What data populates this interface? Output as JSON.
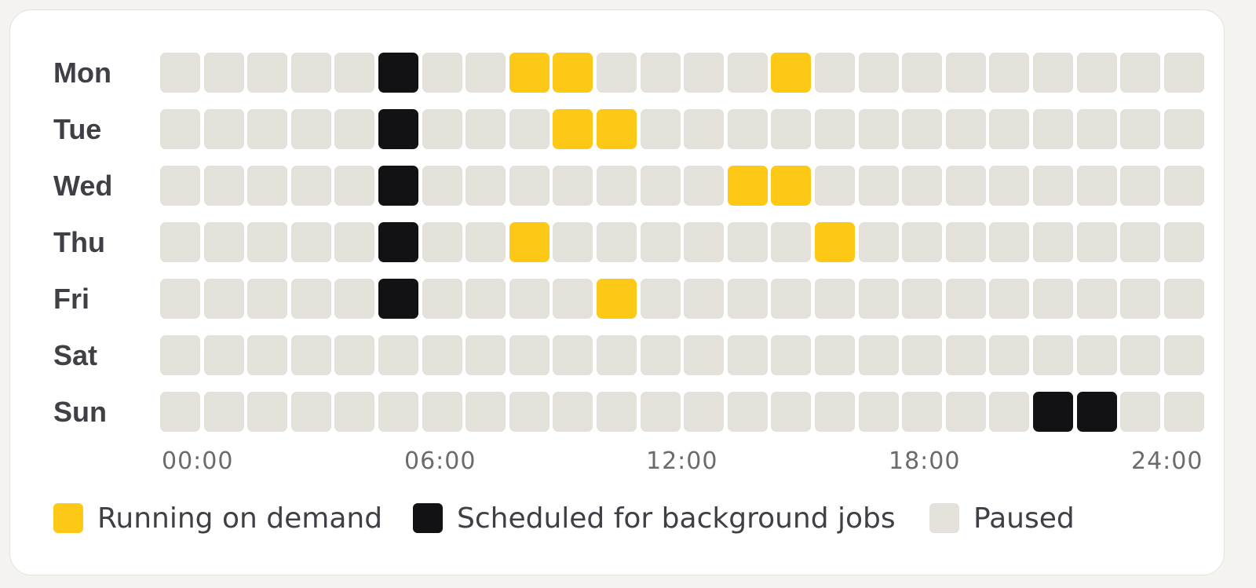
{
  "colors": {
    "running": "#fec817",
    "scheduled": "#121214",
    "paused": "#e3e1da"
  },
  "chart_data": {
    "type": "heatmap",
    "title": "",
    "rows": [
      "Mon",
      "Tue",
      "Wed",
      "Thu",
      "Fri",
      "Sat",
      "Sun"
    ],
    "columns": [
      "00",
      "01",
      "02",
      "03",
      "04",
      "05",
      "06",
      "07",
      "08",
      "09",
      "10",
      "11",
      "12",
      "13",
      "14",
      "15",
      "16",
      "17",
      "18",
      "19",
      "20",
      "21",
      "22",
      "23"
    ],
    "x_ticks": [
      "00:00",
      "06:00",
      "12:00",
      "18:00",
      "24:00"
    ],
    "categories": {
      "R": "Running on demand",
      "S": "Scheduled for background jobs",
      "P": "Paused"
    },
    "values": [
      [
        "P",
        "P",
        "P",
        "P",
        "P",
        "S",
        "P",
        "P",
        "R",
        "R",
        "P",
        "P",
        "P",
        "P",
        "R",
        "P",
        "P",
        "P",
        "P",
        "P",
        "P",
        "P",
        "P",
        "P"
      ],
      [
        "P",
        "P",
        "P",
        "P",
        "P",
        "S",
        "P",
        "P",
        "P",
        "R",
        "R",
        "P",
        "P",
        "P",
        "P",
        "P",
        "P",
        "P",
        "P",
        "P",
        "P",
        "P",
        "P",
        "P"
      ],
      [
        "P",
        "P",
        "P",
        "P",
        "P",
        "S",
        "P",
        "P",
        "P",
        "P",
        "P",
        "P",
        "P",
        "R",
        "R",
        "P",
        "P",
        "P",
        "P",
        "P",
        "P",
        "P",
        "P",
        "P"
      ],
      [
        "P",
        "P",
        "P",
        "P",
        "P",
        "S",
        "P",
        "P",
        "R",
        "P",
        "P",
        "P",
        "P",
        "P",
        "P",
        "R",
        "P",
        "P",
        "P",
        "P",
        "P",
        "P",
        "P",
        "P"
      ],
      [
        "P",
        "P",
        "P",
        "P",
        "P",
        "S",
        "P",
        "P",
        "P",
        "P",
        "R",
        "P",
        "P",
        "P",
        "P",
        "P",
        "P",
        "P",
        "P",
        "P",
        "P",
        "P",
        "P",
        "P"
      ],
      [
        "P",
        "P",
        "P",
        "P",
        "P",
        "P",
        "P",
        "P",
        "P",
        "P",
        "P",
        "P",
        "P",
        "P",
        "P",
        "P",
        "P",
        "P",
        "P",
        "P",
        "P",
        "P",
        "P",
        "P"
      ],
      [
        "P",
        "P",
        "P",
        "P",
        "P",
        "P",
        "P",
        "P",
        "P",
        "P",
        "P",
        "P",
        "P",
        "P",
        "P",
        "P",
        "P",
        "P",
        "P",
        "P",
        "S",
        "S",
        "P",
        "P"
      ]
    ]
  },
  "legend": {
    "running": "Running on demand",
    "scheduled": "Scheduled for background jobs",
    "paused": "Paused"
  }
}
